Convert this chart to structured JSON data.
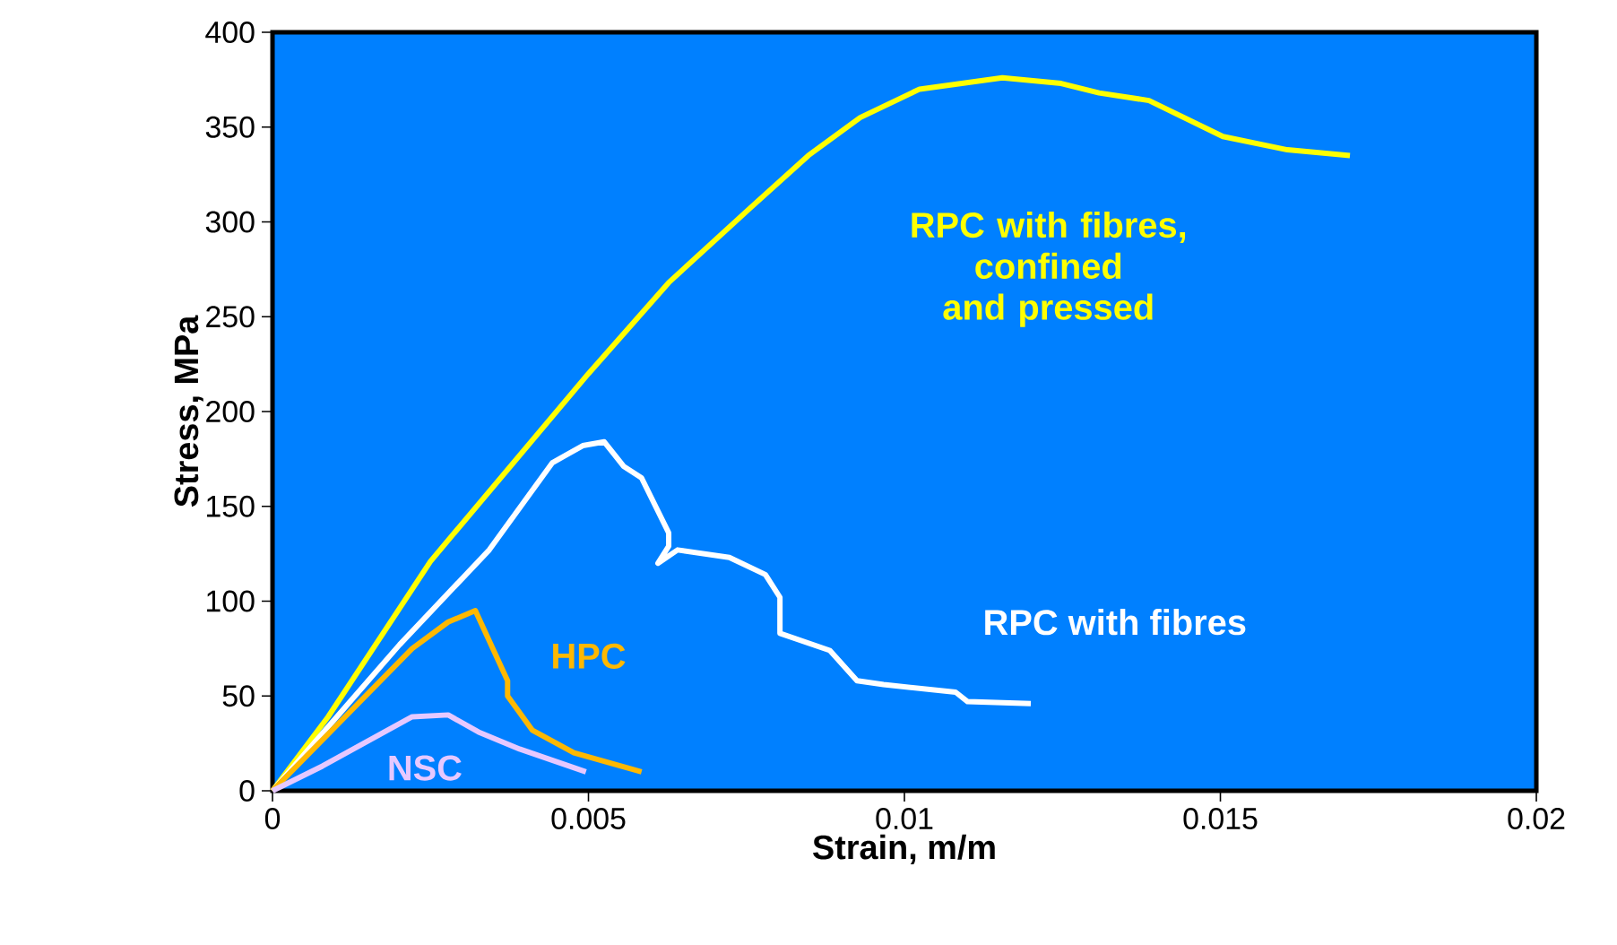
{
  "chart_data": {
    "type": "line",
    "xlabel": "Strain, m/m",
    "ylabel": "Stress, MPa",
    "xlim": [
      0,
      0.02
    ],
    "ylim": [
      0,
      400
    ],
    "xticks": [
      0,
      0.005,
      0.01,
      0.015,
      0.02
    ],
    "yticks": [
      0,
      50,
      100,
      150,
      200,
      250,
      300,
      350,
      400
    ],
    "marker": "none",
    "line_style": "solid",
    "series": [
      {
        "name": "RPC with fibres, confined and pressed",
        "color": "#ffff00",
        "x": [
          0,
          0.00088,
          0.0025,
          0.005,
          0.00627,
          0.00755,
          0.00848,
          0.0093,
          0.01024,
          0.01155,
          0.01248,
          0.01308,
          0.01387,
          0.01504,
          0.01606,
          0.01705
        ],
        "values": [
          0,
          39,
          121,
          220,
          268,
          307,
          335,
          355,
          370,
          376,
          373,
          368,
          364,
          345,
          338,
          335
        ]
      },
      {
        "name": "RPC with fibres",
        "color": "#ffffff",
        "x": [
          0,
          0.00201,
          0.00343,
          0.00443,
          0.00491,
          0.00525,
          0.00556,
          0.00584,
          0.00627,
          0.00627,
          0.0061,
          0.00641,
          0.00723,
          0.0078,
          0.00803,
          0.00803,
          0.00882,
          0.00925,
          0.00967,
          0.01081,
          0.011,
          0.012
        ],
        "values": [
          0,
          77,
          127,
          173,
          182,
          184,
          171,
          165,
          136,
          129,
          120,
          127,
          123,
          114,
          102,
          83,
          74,
          58,
          56,
          52,
          47,
          46
        ]
      },
      {
        "name": "HPC",
        "color": "#ffb800",
        "x": [
          0,
          0.00221,
          0.00278,
          0.00321,
          0.00372,
          0.00372,
          0.00411,
          0.00477,
          0.00584
        ],
        "values": [
          0,
          75,
          89,
          95,
          58,
          50,
          32,
          20,
          10
        ]
      },
      {
        "name": "NSC",
        "color": "#e6c8ff",
        "x": [
          0,
          0.00079,
          0.00221,
          0.00278,
          0.00326,
          0.00391,
          0.00496
        ],
        "values": [
          0,
          13,
          39,
          40,
          31,
          22,
          10
        ]
      }
    ]
  }
}
